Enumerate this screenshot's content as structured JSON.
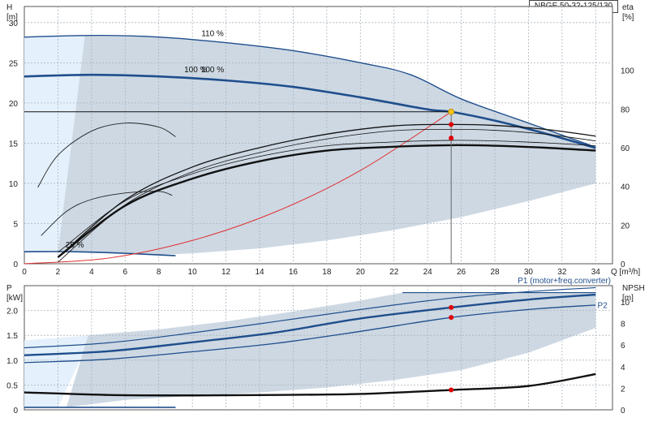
{
  "chart_data": [
    {
      "type": "line",
      "title": "NBGE 50-32-125/130",
      "xlabel": "Q [m³/h]",
      "ylabel_left": "H [m]",
      "ylabel_right": "eta [%]",
      "xlim": [
        0,
        35
      ],
      "ylim_left": [
        0,
        32
      ],
      "ylim_right": [
        0,
        133
      ],
      "x_ticks": [
        0,
        2,
        4,
        6,
        8,
        10,
        12,
        14,
        16,
        18,
        20,
        22,
        24,
        26,
        28,
        30,
        32,
        34
      ],
      "y_ticks_left": [
        0,
        5,
        10,
        15,
        20,
        25,
        30
      ],
      "y_ticks_right": [
        0,
        20,
        40,
        60,
        80,
        100
      ],
      "grid": true,
      "annotations": [
        "110 %",
        "100 %",
        "100 %",
        "25 %"
      ],
      "duty_point": {
        "Q": 25.4,
        "H": 18.9,
        "eta_pump": 72,
        "eta_total": 65
      },
      "series": [
        {
          "name": "110 %",
          "x": [
            0,
            4,
            8,
            12,
            16,
            20,
            23,
            26,
            30,
            34
          ],
          "values": [
            28.2,
            28.4,
            28.2,
            27.5,
            26.5,
            25.0,
            23.5,
            20.5,
            17.5,
            14.5
          ]
        },
        {
          "name": "100 %",
          "x": [
            0,
            4,
            8,
            12,
            16,
            20,
            24,
            25.4,
            28,
            31,
            34
          ],
          "values": [
            23.3,
            23.5,
            23.3,
            22.8,
            22.0,
            20.7,
            19.2,
            18.9,
            17.8,
            16.2,
            14.4
          ]
        },
        {
          "name": "25 %",
          "x": [
            0,
            3,
            6,
            9
          ],
          "values": [
            1.5,
            1.5,
            1.3,
            1.0
          ]
        },
        {
          "x": [
            0,
            5,
            10,
            15,
            20,
            25.4
          ],
          "values": [
            0,
            0.7,
            2.9,
            6.5,
            11.6,
            18.9
          ]
        },
        {
          "x": [
            2,
            6,
            10,
            14,
            18,
            22,
            25.4,
            28,
            31,
            34
          ],
          "values": [
            3.4,
            30,
            44,
            53,
            58.5,
            60.5,
            61.3,
            61,
            60,
            58.5
          ]
        },
        {
          "x": [
            2,
            6,
            10,
            14,
            18,
            22,
            25.4,
            28,
            31,
            34
          ],
          "values": [
            3.3,
            33,
            50,
            60,
            67,
            71.3,
            72,
            71.5,
            69.5,
            66
          ]
        }
      ]
    },
    {
      "type": "line",
      "xlabel": "",
      "ylabel_left": "P [kW]",
      "ylabel_right": "NPSH [m]",
      "xlim": [
        0,
        35
      ],
      "ylim_left": [
        0,
        2.5
      ],
      "ylim_right": [
        0,
        11.5
      ],
      "y_ticks_left": [
        0,
        0.5,
        1.0,
        1.5,
        2.0
      ],
      "y_ticks_right": [
        0,
        2,
        4,
        6,
        8,
        10
      ],
      "grid": true,
      "annotations": [
        "P1 (motor+freq.converter)",
        "P2"
      ],
      "series": [
        {
          "name": "P1 (motor+freq.converter)",
          "x": [
            0,
            5,
            10,
            15,
            20,
            25.4,
            30,
            34
          ],
          "values": [
            1.1,
            1.18,
            1.36,
            1.56,
            1.84,
            2.06,
            2.22,
            2.32
          ]
        },
        {
          "name": "P2",
          "x": [
            0,
            5,
            10,
            15,
            20,
            25.4,
            30,
            34
          ],
          "values": [
            0.95,
            1.02,
            1.17,
            1.34,
            1.58,
            1.86,
            2.02,
            2.11
          ]
        },
        {
          "x": [
            0,
            5,
            10,
            15,
            20,
            25.4,
            30,
            34
          ],
          "values": [
            1.25,
            1.35,
            1.55,
            1.78,
            2.02,
            2.25,
            2.38,
            2.46
          ]
        },
        {
          "x": [
            0,
            5,
            10,
            15,
            20,
            25.4,
            30,
            34
          ],
          "values": [
            0.35,
            0.3,
            0.29,
            0.3,
            0.32,
            0.4,
            0.48,
            0.72
          ]
        }
      ]
    }
  ]
}
